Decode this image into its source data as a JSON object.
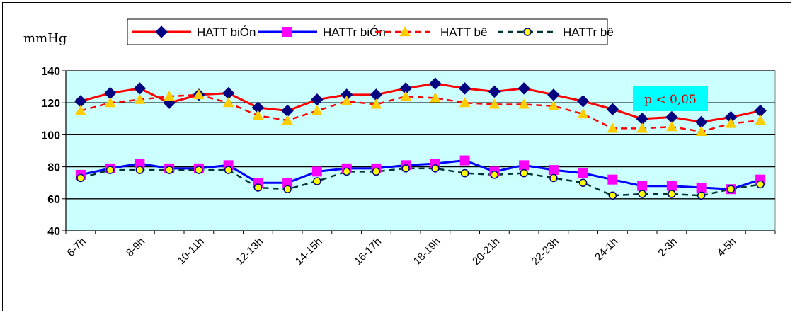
{
  "chart_data": {
    "type": "line",
    "ylabel": "mmHg",
    "ylim": [
      40,
      140
    ],
    "y_ticks": [
      40,
      60,
      80,
      100,
      120,
      140
    ],
    "x_tick_labels": [
      "6-7h",
      "8-9h",
      "10-11h",
      "12-13h",
      "14-15h",
      "16-17h",
      "18-19h",
      "20-21h",
      "22-23h",
      "24-1h",
      "2-3h",
      "4-5h"
    ],
    "grid": true,
    "plot_background": "#ccffff",
    "legend_position": "top",
    "annotation": "p < 0,05",
    "annotation_background": "#00ffff",
    "series": [
      {
        "name": "HATT biÓn",
        "color": "#ff0000",
        "marker": "diamond",
        "marker_color": "#000080",
        "line_style": "solid",
        "values": [
          121,
          126,
          129,
          120,
          125,
          126,
          117,
          115,
          122,
          125,
          125,
          129,
          132,
          129,
          127,
          129,
          125,
          121,
          116,
          110,
          111,
          108,
          111,
          115
        ]
      },
      {
        "name": "HATTr biÓn",
        "color": "#0000ff",
        "marker": "square",
        "marker_color": "#ff00ff",
        "line_style": "solid",
        "values": [
          75,
          79,
          82,
          79,
          79,
          81,
          70,
          70,
          77,
          79,
          79,
          81,
          82,
          84,
          77,
          81,
          78,
          76,
          72,
          68,
          68,
          67,
          66,
          72
        ]
      },
      {
        "name": "HATT bê",
        "color": "#ff0000",
        "marker": "triangle",
        "marker_color": "#ffcc00",
        "line_style": "dashed",
        "values": [
          115,
          120,
          122,
          124,
          125,
          120,
          112,
          109,
          115,
          121,
          119,
          124,
          123,
          120,
          119,
          119,
          118,
          113,
          104,
          104,
          105,
          102,
          107,
          109
        ]
      },
      {
        "name": "HATTr bê",
        "color": "#003333",
        "marker": "circle",
        "marker_color": "#ffff00",
        "line_style": "dashed",
        "values": [
          73,
          78,
          78,
          78,
          78,
          78,
          67,
          66,
          71,
          77,
          77,
          79,
          79,
          76,
          75,
          76,
          73,
          70,
          62,
          63,
          63,
          62,
          66,
          69
        ]
      }
    ]
  }
}
